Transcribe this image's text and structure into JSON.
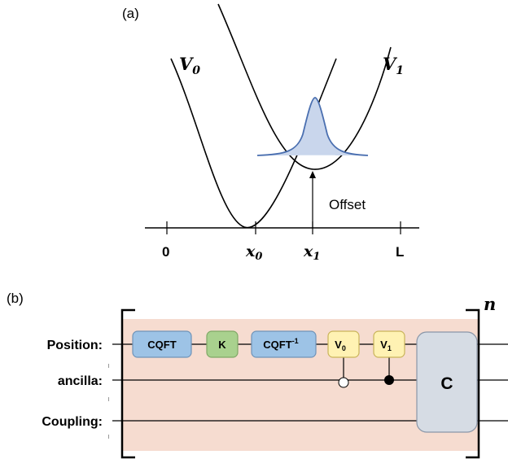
{
  "panel_a": {
    "label": "(a)",
    "curve_v0_label": "V",
    "curve_v0_sub": "0",
    "curve_v1_label": "V",
    "curve_v1_sub": "1",
    "offset_label": "Offset",
    "ticks": {
      "zero": "0",
      "x0": "x",
      "x0_sub": "0",
      "x1": "x",
      "x1_sub": "1",
      "L": "L"
    },
    "colors": {
      "wavepacket_stroke": "#4a6fb0",
      "wavepacket_fill": "#c9d6ec"
    }
  },
  "panel_b": {
    "label": "(b)",
    "repeat_label": "n",
    "wires": {
      "position": "Position:",
      "ancilla": "ancilla:",
      "coupling": "Coupling:"
    },
    "gates": {
      "cqft": "CQFT",
      "k": "K",
      "cqft_inv": "CQFT",
      "cqft_inv_sup": "-1",
      "v0": "V",
      "v0_sub": "0",
      "v1": "V",
      "v1_sub": "1",
      "c": "C"
    },
    "colors": {
      "background": "#f6dcd0",
      "cqft": "#9dc3e6",
      "k": "#a9d18e",
      "v": "#fff2b3",
      "c": "#d6dce4"
    }
  }
}
